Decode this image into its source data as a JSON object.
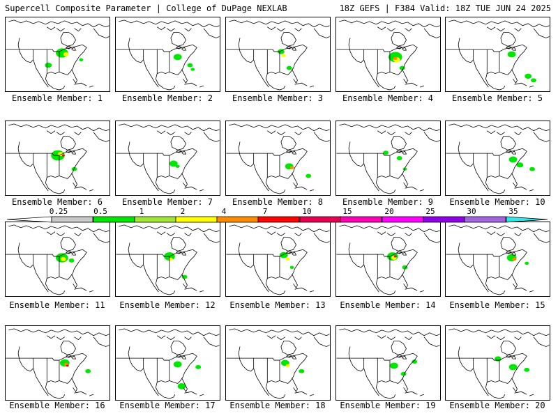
{
  "header": {
    "left": "Supercell Composite Parameter | College of DuPage NEXLAB",
    "right": "18Z GEFS | F384 Valid: 18Z TUE JUN 24 2025"
  },
  "panels": [
    {
      "label": "Ensemble Member: 1"
    },
    {
      "label": "Ensemble Member: 2"
    },
    {
      "label": "Ensemble Member: 3"
    },
    {
      "label": "Ensemble Member: 4"
    },
    {
      "label": "Ensemble Member: 5"
    },
    {
      "label": "Ensemble Member: 6"
    },
    {
      "label": "Ensemble Member: 7"
    },
    {
      "label": "Ensemble Member: 8"
    },
    {
      "label": "Ensemble Member: 9"
    },
    {
      "label": "Ensemble Member: 10"
    },
    {
      "label": "Ensemble Member: 11"
    },
    {
      "label": "Ensemble Member: 12"
    },
    {
      "label": "Ensemble Member: 13"
    },
    {
      "label": "Ensemble Member: 14"
    },
    {
      "label": "Ensemble Member: 15"
    },
    {
      "label": "Ensemble Member: 16"
    },
    {
      "label": "Ensemble Member: 17"
    },
    {
      "label": "Ensemble Member: 18"
    },
    {
      "label": "Ensemble Member: 19"
    },
    {
      "label": "Ensemble Member: 20"
    }
  ],
  "colorbar": {
    "ticks": [
      "0.25",
      "0.5",
      "1",
      "2",
      "4",
      "7",
      "10",
      "15",
      "20",
      "25",
      "30",
      "35"
    ],
    "colors": [
      "#c8c8c8",
      "#00e600",
      "#a0e632",
      "#ffff00",
      "#ff8c00",
      "#ff0000",
      "#e60050",
      "#ff00b4",
      "#ff00ff",
      "#8c00e6",
      "#a064dc",
      "#32e6e6"
    ]
  }
}
